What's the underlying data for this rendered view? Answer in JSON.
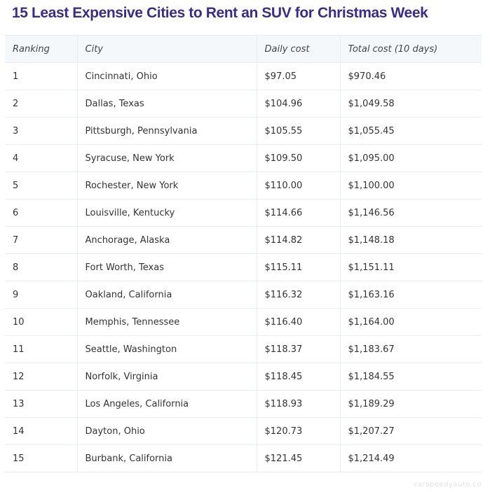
{
  "header": {
    "title": "15 Least Expensive Cities to Rent an SUV for Christmas Week"
  },
  "table": {
    "columns": [
      "Ranking",
      "City",
      "Daily cost",
      "Total cost (10 days)"
    ],
    "rows": [
      [
        1,
        "Cincinnati, Ohio",
        "$97.05",
        "$970.46"
      ],
      [
        2,
        "Dallas, Texas",
        "$104.96",
        "$1,049.58"
      ],
      [
        3,
        "Pittsburgh, Pennsylvania",
        "$105.55",
        "$1,055.45"
      ],
      [
        4,
        "Syracuse, New York",
        "$109.50",
        "$1,095.00"
      ],
      [
        5,
        "Rochester, New York",
        "$110.00",
        "$1,100.00"
      ],
      [
        6,
        "Louisville, Kentucky",
        "$114.66",
        "$1,146.56"
      ],
      [
        7,
        "Anchorage, Alaska",
        "$114.82",
        "$1,148.18"
      ],
      [
        8,
        "Fort Worth, Texas",
        "$115.11",
        "$1,151.11"
      ],
      [
        9,
        "Oakland, California",
        "$116.32",
        "$1,163.16"
      ],
      [
        10,
        "Memphis, Tennessee",
        "$116.40",
        "$1,164.00"
      ],
      [
        11,
        "Seattle, Washington",
        "$118.37",
        "$1,183.67"
      ],
      [
        12,
        "Norfolk, Virginia",
        "$118.45",
        "$1,184.55"
      ],
      [
        13,
        "Los Angeles, California",
        "$118.93",
        "$1,189.29"
      ],
      [
        14,
        "Dayton, Ohio",
        "$120.73",
        "$1,207.27"
      ],
      [
        15,
        "Burbank, California",
        "$121.45",
        "$1,214.49"
      ]
    ]
  },
  "watermark": "carspeedyauto.co"
}
